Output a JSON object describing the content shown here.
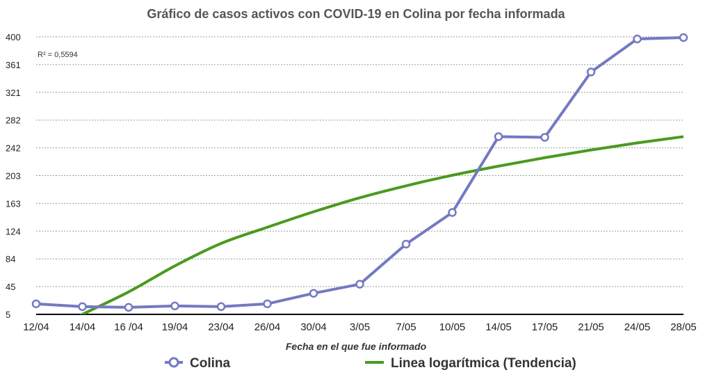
{
  "chart_data": {
    "type": "line",
    "title": "Gráfico de casos activos con COVID-19 en Colina por fecha informada",
    "xlabel": "Fecha en el que fue informado",
    "ylabel": "",
    "categories": [
      "12/04",
      "14/04",
      "16 /04",
      "19/04",
      "23/04",
      "26/04",
      "30/04",
      "3/05",
      "7/05",
      "10/05",
      "14/05",
      "17/05",
      "21/05",
      "24/05",
      "28/05"
    ],
    "yticks": [
      "5",
      "45",
      "84",
      "124",
      "163",
      "203",
      "242",
      "282",
      "321",
      "361",
      "400"
    ],
    "ylim": [
      5,
      400
    ],
    "grid": true,
    "legend_position": "bottom",
    "annotation": "R² = 0,5594",
    "series": [
      {
        "name": "Colina",
        "color": "#7479c2",
        "marker": "open-circle",
        "values": [
          20,
          16,
          15,
          17,
          16,
          20,
          35,
          48,
          105,
          150,
          258,
          257,
          350,
          397,
          399
        ]
      },
      {
        "name": "Linea logarítmica (Tendencia)",
        "color": "#4a9a1f",
        "marker": "none",
        "trend": "logarithmic",
        "values": [
          -28,
          5,
          37,
          74,
          106,
          129,
          151,
          171,
          188,
          203,
          216,
          228,
          239,
          249,
          258
        ]
      }
    ]
  }
}
